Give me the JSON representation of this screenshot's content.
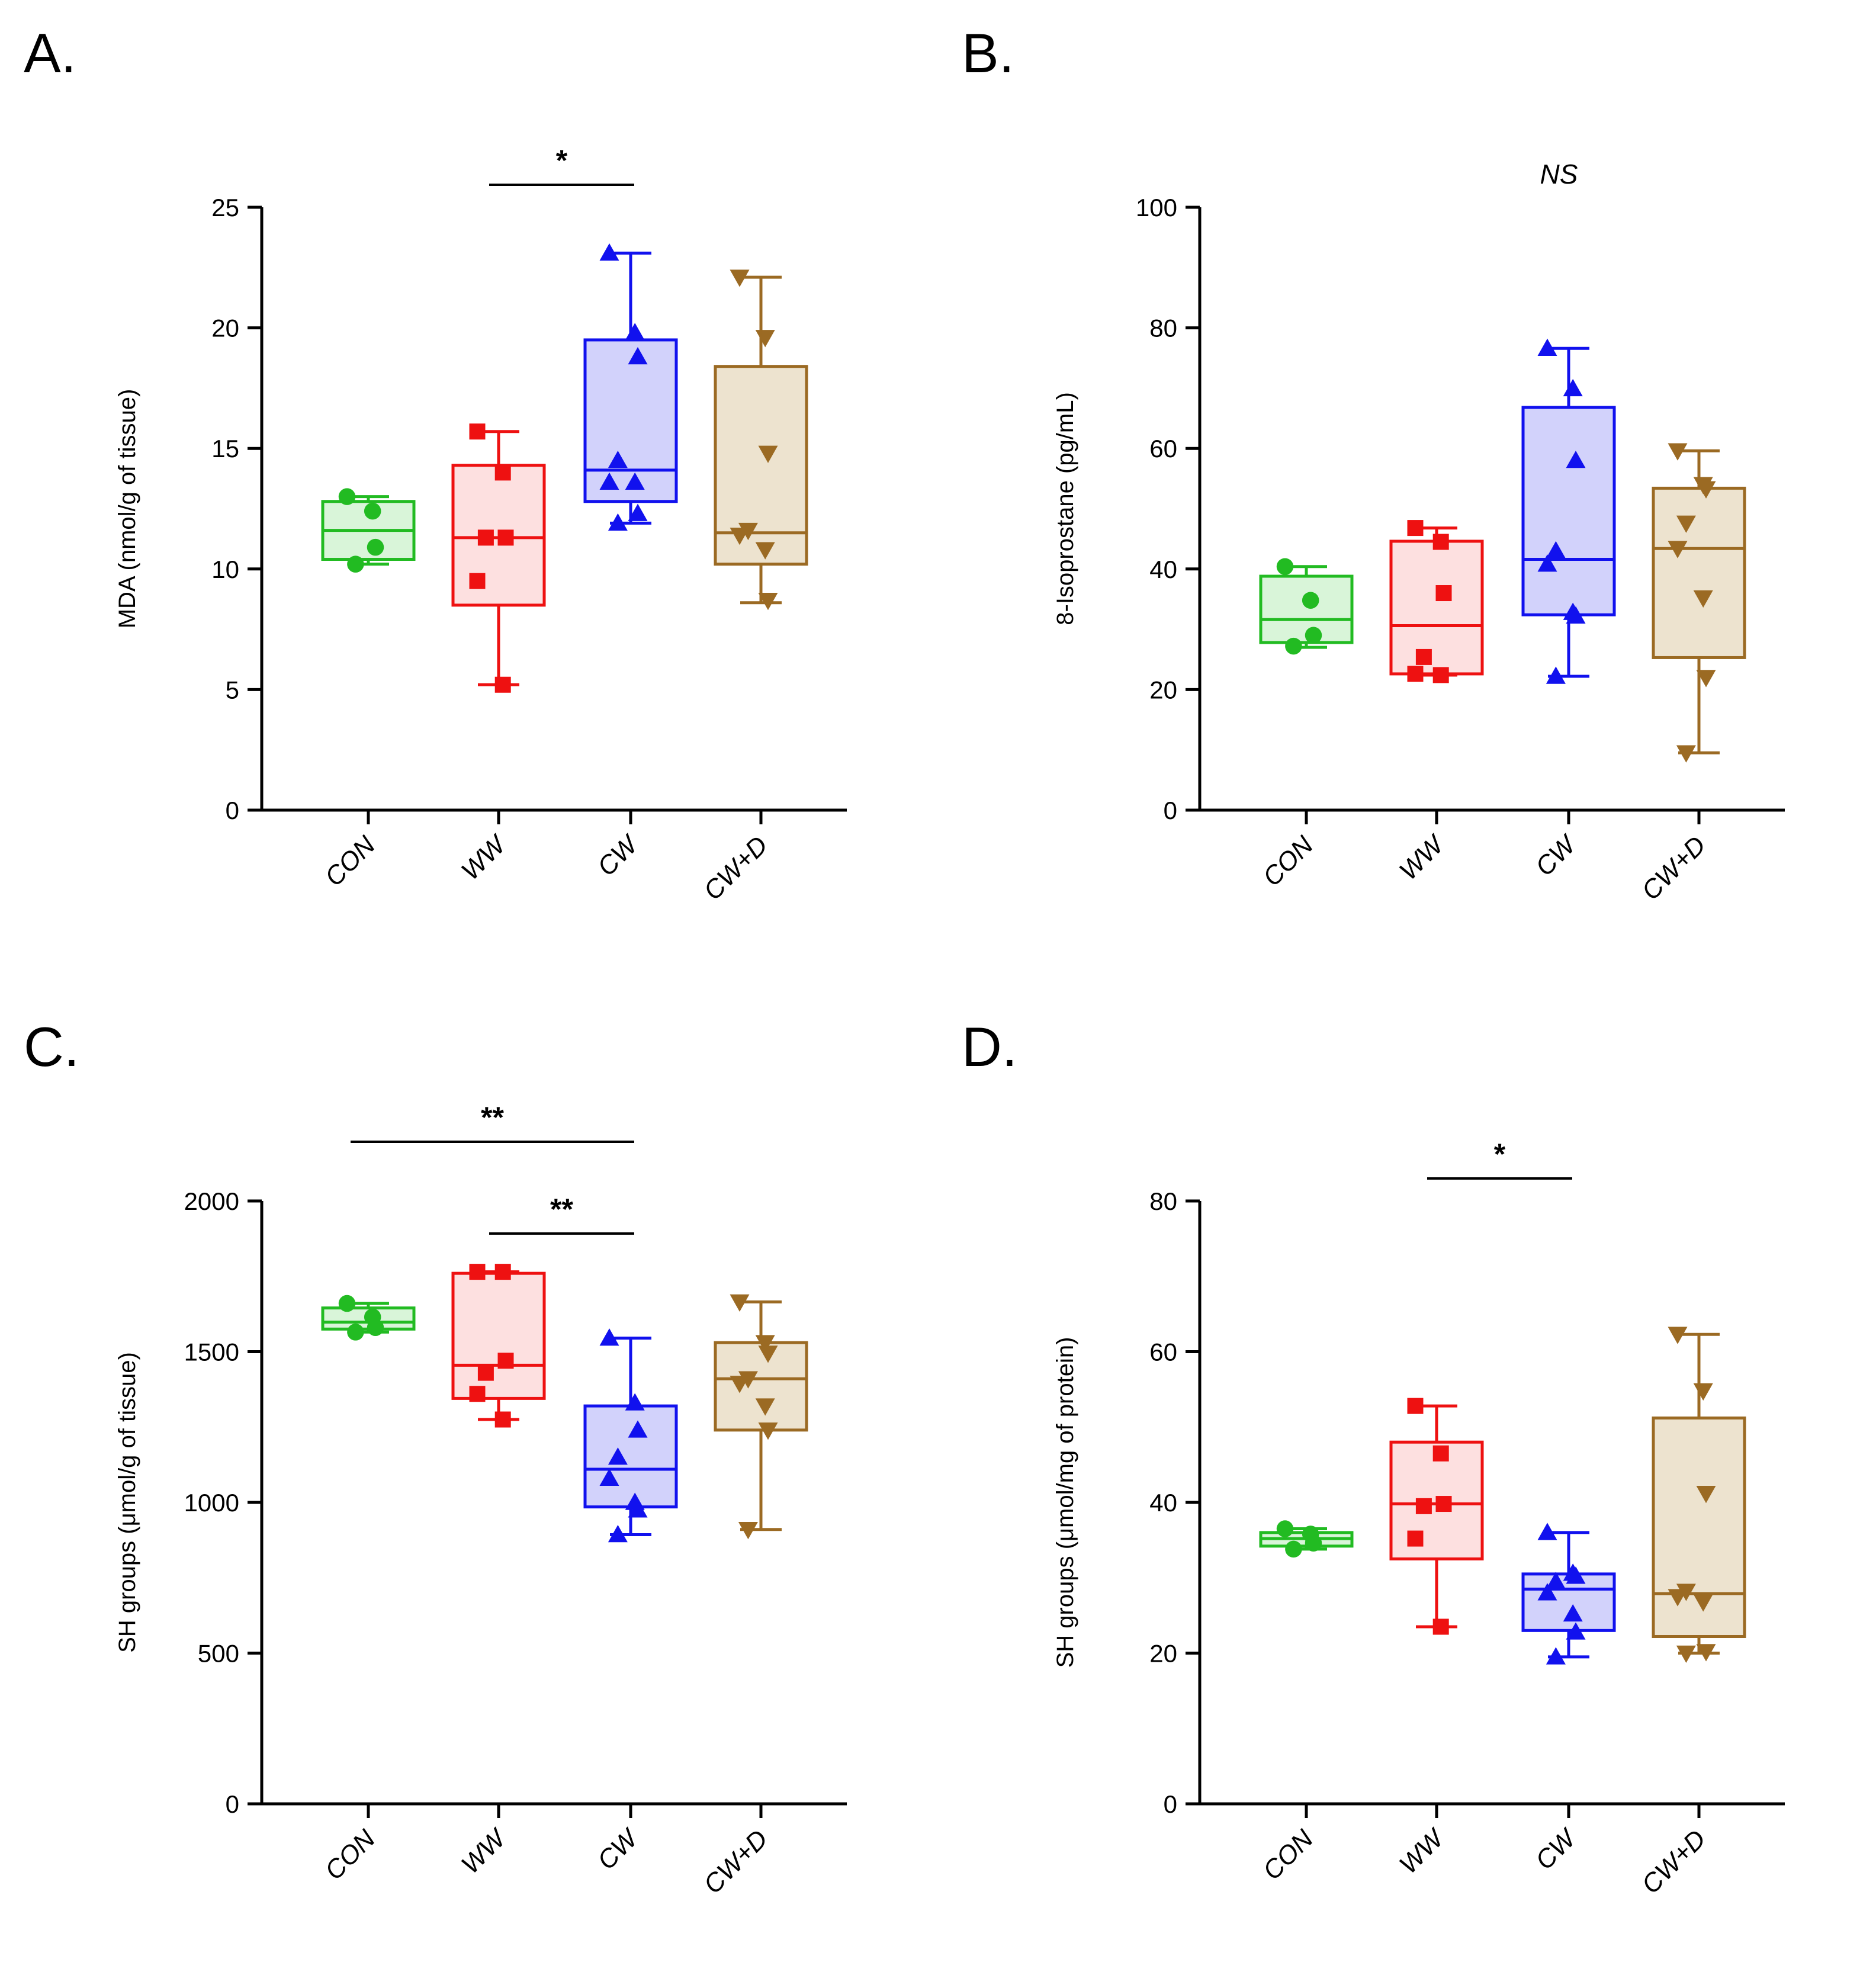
{
  "chart_data": [
    {
      "panel": "A.",
      "type": "box",
      "ylabel": "MDA (nmol/g of tissue)",
      "ylim": [
        0,
        25
      ],
      "yticks": [
        0,
        5,
        10,
        15,
        20,
        25
      ],
      "categories": [
        "CON",
        "WW",
        "CW",
        "CW+D"
      ],
      "groups": [
        {
          "name": "CON",
          "color": "#22bb22",
          "fill": "#d9f5d9",
          "marker": "circle",
          "min": 10.2,
          "q1": 10.4,
          "median": 11.6,
          "q3": 12.8,
          "max": 13.0,
          "points": [
            13.0,
            12.4,
            10.9,
            10.2
          ]
        },
        {
          "name": "WW",
          "color": "#ee1111",
          "fill": "#fde0e0",
          "marker": "square",
          "min": 5.2,
          "q1": 8.5,
          "median": 11.3,
          "q3": 14.3,
          "max": 15.7,
          "points": [
            15.7,
            14.0,
            11.3,
            11.3,
            9.5,
            5.2
          ]
        },
        {
          "name": "CW",
          "color": "#1111ee",
          "fill": "#d2d2fb",
          "marker": "triangle-up",
          "min": 11.9,
          "q1": 12.8,
          "median": 14.1,
          "q3": 19.5,
          "max": 23.1,
          "points": [
            23.1,
            19.8,
            18.8,
            14.5,
            13.6,
            13.6,
            12.3,
            11.9
          ]
        },
        {
          "name": "CW+D",
          "color": "#9b6a23",
          "fill": "#ede3cf",
          "marker": "triangle-down",
          "min": 8.6,
          "q1": 10.2,
          "median": 11.5,
          "q3": 18.4,
          "max": 22.1,
          "points": [
            22.1,
            19.6,
            14.8,
            11.6,
            11.4,
            10.8,
            8.7
          ]
        }
      ],
      "annotations": [
        {
          "text": "*",
          "from": "WW",
          "to": "CW"
        }
      ]
    },
    {
      "panel": "B.",
      "type": "box",
      "ylabel": "8-Isoprostane (pg/mL)",
      "ylim": [
        0,
        100
      ],
      "yticks": [
        0,
        20,
        40,
        60,
        80,
        100
      ],
      "categories": [
        "CON",
        "WW",
        "CW",
        "CW+D"
      ],
      "groups": [
        {
          "name": "CON",
          "color": "#22bb22",
          "fill": "#d9f5d9",
          "marker": "circle",
          "min": 27.0,
          "q1": 27.8,
          "median": 31.6,
          "q3": 38.8,
          "max": 40.4,
          "points": [
            40.4,
            34.8,
            29.0,
            27.2
          ]
        },
        {
          "name": "WW",
          "color": "#ee1111",
          "fill": "#fde0e0",
          "marker": "square",
          "min": 22.4,
          "q1": 22.6,
          "median": 30.6,
          "q3": 44.6,
          "max": 46.8,
          "points": [
            46.8,
            44.5,
            36.0,
            25.4,
            22.6,
            22.4
          ]
        },
        {
          "name": "CW",
          "color": "#1111ee",
          "fill": "#d2d2fb",
          "marker": "triangle-up",
          "min": 22.2,
          "q1": 32.4,
          "median": 41.6,
          "q3": 66.8,
          "max": 76.6,
          "points": [
            76.6,
            69.9,
            58.0,
            43.0,
            40.8,
            32.8,
            32.2,
            22.2
          ]
        },
        {
          "name": "CW+D",
          "color": "#9b6a23",
          "fill": "#ede3cf",
          "marker": "triangle-down",
          "min": 9.5,
          "q1": 25.3,
          "median": 43.4,
          "q3": 53.4,
          "max": 59.6,
          "points": [
            59.6,
            54.0,
            53.3,
            47.6,
            43.4,
            35.2,
            22.0,
            9.5
          ]
        }
      ],
      "annotations": [
        {
          "text": "NS"
        }
      ]
    },
    {
      "panel": "C.",
      "type": "box",
      "ylabel": "SH groups (μmol/g of tissue)",
      "ylim": [
        0,
        2000
      ],
      "yticks": [
        0,
        500,
        1000,
        1500,
        2000
      ],
      "categories": [
        "CON",
        "WW",
        "CW",
        "CW+D"
      ],
      "groups": [
        {
          "name": "CON",
          "color": "#22bb22",
          "fill": "#d9f5d9",
          "marker": "circle",
          "min": 1565,
          "q1": 1575,
          "median": 1598,
          "q3": 1645,
          "max": 1660,
          "points": [
            1660,
            1615,
            1580,
            1565
          ]
        },
        {
          "name": "WW",
          "color": "#ee1111",
          "fill": "#fde0e0",
          "marker": "square",
          "min": 1275,
          "q1": 1345,
          "median": 1455,
          "q3": 1760,
          "max": 1765,
          "points": [
            1765,
            1765,
            1470,
            1430,
            1360,
            1275
          ]
        },
        {
          "name": "CW",
          "color": "#1111ee",
          "fill": "#d2d2fb",
          "marker": "triangle-up",
          "min": 893,
          "q1": 985,
          "median": 1110,
          "q3": 1320,
          "max": 1545,
          "points": [
            1545,
            1330,
            1240,
            1150,
            1080,
            1000,
            975,
            893
          ]
        },
        {
          "name": "CW+D",
          "color": "#9b6a23",
          "fill": "#ede3cf",
          "marker": "triangle-down",
          "min": 910,
          "q1": 1240,
          "median": 1410,
          "q3": 1530,
          "max": 1665,
          "points": [
            1665,
            1530,
            1495,
            1410,
            1395,
            1320,
            1240,
            910
          ]
        }
      ],
      "annotations": [
        {
          "text": "**",
          "from": "CON",
          "to": "CW"
        },
        {
          "text": "**",
          "from": "WW",
          "to": "CW"
        }
      ]
    },
    {
      "panel": "D.",
      "type": "box",
      "ylabel": "SH groups (μmol/mg of protein)",
      "ylim": [
        0,
        80
      ],
      "yticks": [
        0,
        20,
        40,
        60,
        80
      ],
      "categories": [
        "CON",
        "WW",
        "CW",
        "CW+D"
      ],
      "groups": [
        {
          "name": "CON",
          "color": "#22bb22",
          "fill": "#d9f5d9",
          "marker": "circle",
          "min": 33.8,
          "q1": 34.2,
          "median": 35.2,
          "q3": 36.0,
          "max": 36.5,
          "points": [
            36.5,
            35.8,
            34.6,
            33.8
          ]
        },
        {
          "name": "WW",
          "color": "#ee1111",
          "fill": "#fde0e0",
          "marker": "square",
          "min": 23.5,
          "q1": 32.5,
          "median": 39.8,
          "q3": 48.0,
          "max": 52.8,
          "points": [
            52.8,
            46.5,
            39.8,
            39.5,
            35.2,
            23.5
          ]
        },
        {
          "name": "CW",
          "color": "#1111ee",
          "fill": "#d2d2fb",
          "marker": "triangle-up",
          "min": 19.5,
          "q1": 23.0,
          "median": 28.5,
          "q3": 30.5,
          "max": 36.0,
          "points": [
            36.0,
            30.6,
            30.2,
            29.5,
            28.0,
            25.2,
            22.8,
            19.5
          ]
        },
        {
          "name": "CW+D",
          "color": "#9b6a23",
          "fill": "#ede3cf",
          "marker": "triangle-down",
          "min": 20.0,
          "q1": 22.2,
          "median": 27.9,
          "q3": 51.2,
          "max": 62.3,
          "points": [
            62.3,
            54.8,
            41.2,
            28.2,
            27.5,
            26.8,
            20.2,
            20.0
          ]
        }
      ],
      "annotations": [
        {
          "text": "*",
          "from": "WW",
          "to": "CW"
        }
      ]
    }
  ]
}
